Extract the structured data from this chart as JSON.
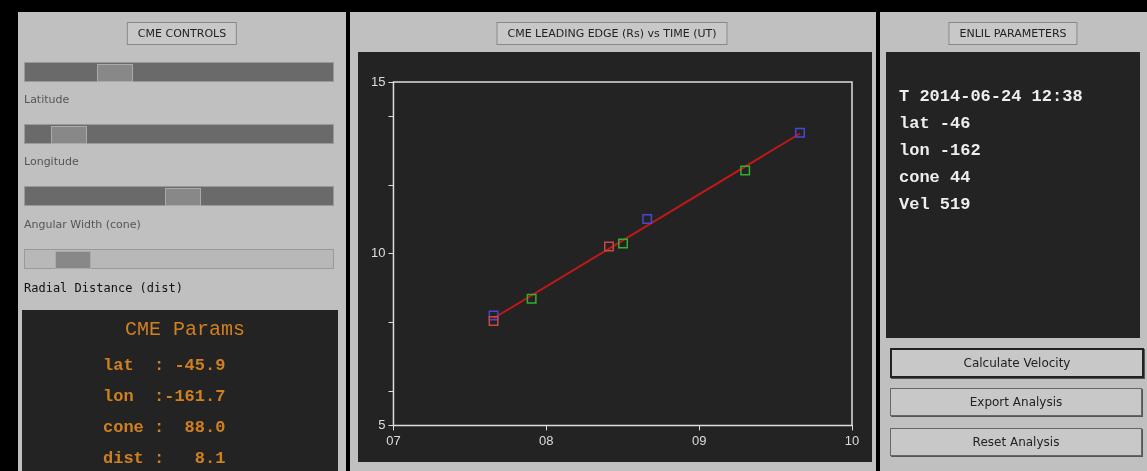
{
  "chart_data": {
    "type": "scatter",
    "title": "CME LEADING EDGE (Rs) vs TIME (UT)",
    "xlim": [
      7,
      10
    ],
    "xticks": [
      {
        "value": 7,
        "label": "07"
      },
      {
        "value": 8,
        "label": "08"
      },
      {
        "value": 9,
        "label": "09"
      },
      {
        "value": 10,
        "label": "10"
      }
    ],
    "ylim": [
      5,
      15
    ],
    "yticks": [
      5,
      {
        "value": 6,
        "label": null
      },
      {
        "value": 8,
        "label": null
      },
      10,
      {
        "value": 12,
        "label": null
      },
      {
        "value": 14,
        "label": null
      },
      15
    ],
    "series": [
      {
        "type": "scatter",
        "marker": "square",
        "color": "#c84848",
        "x": [
          7.655,
          8.41
        ],
        "values": [
          8.04,
          10.21
        ]
      },
      {
        "type": "scatter",
        "marker": "square",
        "color": "#4848d0",
        "x": [
          7.655,
          8.66,
          9.66
        ],
        "values": [
          8.2,
          11.01,
          13.52
        ]
      },
      {
        "type": "scatter",
        "marker": "square",
        "color": "#30b030",
        "x": [
          7.904,
          8.502,
          9.301
        ],
        "values": [
          8.69,
          10.3,
          12.42
        ]
      },
      {
        "type": "line",
        "marker": "none",
        "color": "#c01818",
        "x": [
          7.655,
          9.66
        ],
        "values": [
          8.12,
          13.5
        ]
      }
    ],
    "annotations": [
      "CME CONTROLS",
      "Latitude",
      "Longitude",
      "Angular Width (cone)",
      "Radial Distance (dist)",
      "CME Params",
      "lat  : -45.9",
      "lon  :-161.7",
      "cone :  88.0",
      "dist :   8.1",
      "ENLIL PARAMETERS",
      "T 2014-06-24 12:38",
      "lat -46",
      "lon -162",
      "cone 44",
      "Vel 519",
      "Calculate Velocity",
      "Export Analysis",
      "Reset Analysis"
    ]
  }
}
